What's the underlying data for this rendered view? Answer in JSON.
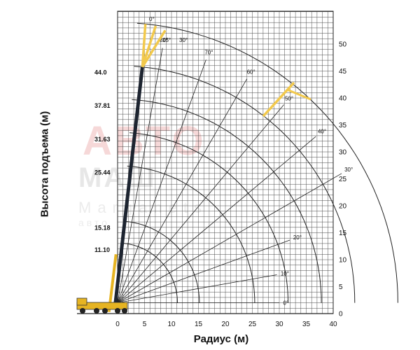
{
  "watermark": {
    "line1": "АВТО",
    "line2": "МАШ",
    "line3": "Marganets",
    "line4": "авто"
  },
  "chart_data": {
    "type": "line",
    "title": "",
    "xlabel": "Радиус (м)",
    "ylabel": "Высота подъема (м)",
    "xlim": [
      0,
      40
    ],
    "ylim": [
      0,
      55
    ],
    "x_ticks": [
      "0",
      "5",
      "10",
      "15",
      "20",
      "25",
      "30",
      "35",
      "40"
    ],
    "y_ticks_right": [
      "0",
      "5",
      "10",
      "15",
      "20",
      "25",
      "30",
      "35",
      "40",
      "45",
      "50"
    ],
    "grid": true,
    "legend": "none",
    "boom_length_labels": [
      "11.10",
      "15.18",
      "25.44",
      "31.63",
      "37.81",
      "44.0"
    ],
    "boom_lengths": [
      11.1,
      15.18,
      25.44,
      31.63,
      37.81,
      44.0
    ],
    "jib_length": 8.0,
    "angle_labels": [
      "0°",
      "10°",
      "20°",
      "30°",
      "40°",
      "50°",
      "60°",
      "70°",
      "80°"
    ],
    "angles_deg": [
      0,
      10,
      20,
      30,
      40,
      50,
      60,
      70,
      80
    ],
    "jib_offset_labels": [
      "0°",
      "15°",
      "30°"
    ],
    "pivot": [
      0,
      2
    ],
    "colors": {
      "grid": "#4a4a4a",
      "boom_dark": "#1d2430",
      "boom_yellow": "#e6b422",
      "jib_yellow": "#f2c94c",
      "curve": "#222222"
    }
  }
}
